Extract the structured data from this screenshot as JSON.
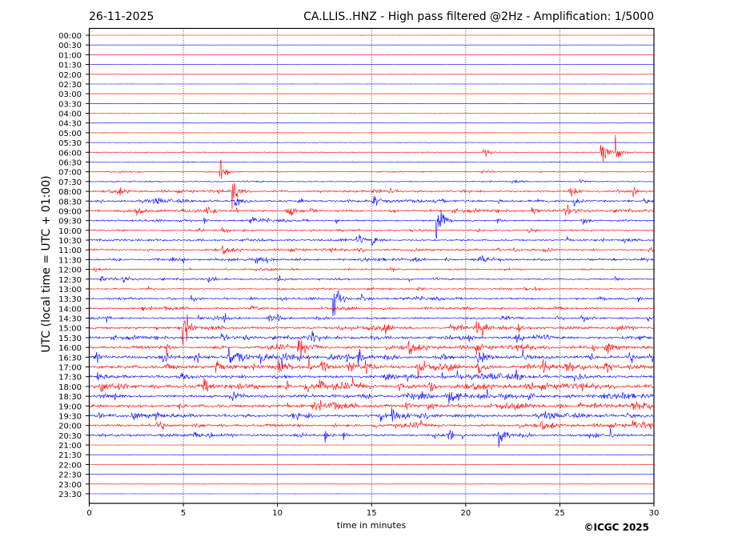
{
  "header": {
    "date": "26-11-2025",
    "title": "CA.LLIS..HNZ - High pass filtered @2Hz - Amplification: 1/5000"
  },
  "footer": {
    "copyright": "©ICGC 2025"
  },
  "chart_data": {
    "type": "line",
    "subtype": "helicorder",
    "xlabel": "time in minutes",
    "ylabel": "UTC (local time = UTC + 01:00)",
    "xlim": [
      0,
      30
    ],
    "x_ticks": [
      "0",
      "5",
      "10",
      "15",
      "20",
      "25",
      "30"
    ],
    "grid": "vertical dotted lines at each x tick",
    "row_colors": [
      "#ff0000",
      "#0000ff"
    ],
    "rows": [
      "00:00",
      "00:30",
      "01:00",
      "01:30",
      "02:00",
      "02:30",
      "03:00",
      "03:30",
      "04:00",
      "04:30",
      "05:00",
      "05:30",
      "06:00",
      "06:30",
      "07:00",
      "07:30",
      "08:00",
      "08:30",
      "09:00",
      "09:30",
      "10:00",
      "10:30",
      "11:00",
      "11:30",
      "12:00",
      "12:30",
      "13:00",
      "13:30",
      "14:00",
      "14:30",
      "15:00",
      "15:30",
      "16:00",
      "16:30",
      "17:00",
      "17:30",
      "18:00",
      "18:30",
      "19:00",
      "19:30",
      "20:00",
      "20:30",
      "21:00",
      "21:30",
      "22:00",
      "22:30",
      "23:00",
      "23:30"
    ],
    "relative_activity": [
      0.02,
      0.02,
      0.02,
      0.02,
      0.03,
      0.02,
      0.02,
      0.02,
      0.03,
      0.03,
      0.05,
      0.06,
      0.12,
      0.08,
      0.15,
      0.2,
      0.35,
      0.4,
      0.45,
      0.3,
      0.3,
      0.35,
      0.35,
      0.35,
      0.25,
      0.3,
      0.25,
      0.35,
      0.35,
      0.4,
      0.5,
      0.5,
      0.55,
      0.7,
      0.7,
      0.55,
      0.7,
      0.55,
      0.65,
      0.55,
      0.5,
      0.5,
      0.03,
      0.03,
      0.03,
      0.03,
      0.03,
      0.03
    ],
    "notable_events": [
      {
        "row": "06:00",
        "minute": 21.0,
        "strength": 0.4
      },
      {
        "row": "06:00",
        "minute": 27.2,
        "strength": 1.0
      },
      {
        "row": "06:00",
        "minute": 28.0,
        "strength": 0.8
      },
      {
        "row": "07:00",
        "minute": 7.0,
        "strength": 0.8
      },
      {
        "row": "08:00",
        "minute": 7.6,
        "strength": 1.0
      },
      {
        "row": "09:30",
        "minute": 18.5,
        "strength": 1.6
      },
      {
        "row": "13:30",
        "minute": 13.0,
        "strength": 1.2
      },
      {
        "row": "15:00",
        "minute": 5.0,
        "strength": 1.2
      },
      {
        "row": "20:30",
        "minute": 21.8,
        "strength": 0.8
      }
    ]
  }
}
